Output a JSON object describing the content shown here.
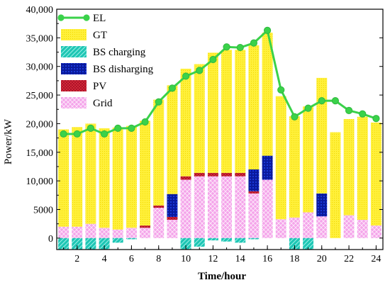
{
  "chart_data": {
    "type": "bar",
    "xlabel": "Time/hour",
    "ylabel": "Power/kW",
    "ylim": [
      -2000,
      40000
    ],
    "xlim": [
      0.5,
      24.5
    ],
    "x_ticks": [
      2,
      4,
      6,
      8,
      10,
      12,
      14,
      16,
      18,
      20,
      22,
      24
    ],
    "x_tick_labels": [
      "2",
      "4",
      "6",
      "8",
      "10",
      "12",
      "14",
      "16",
      "18",
      "20",
      "22",
      "24"
    ],
    "y_ticks": [
      0,
      5000,
      10000,
      15000,
      20000,
      25000,
      30000,
      35000,
      40000
    ],
    "y_tick_labels": [
      "0",
      "5000",
      "10,000",
      "15,000",
      "20,000",
      "25,000",
      "30,000",
      "35,000",
      "40,000"
    ],
    "hours": [
      1,
      2,
      3,
      4,
      5,
      6,
      7,
      8,
      9,
      10,
      11,
      12,
      13,
      14,
      15,
      16,
      17,
      18,
      19,
      20,
      21,
      22,
      23,
      24
    ],
    "legend": {
      "position": "top-left",
      "entries": [
        "EL",
        "GT",
        "BS charging",
        "BS disharging",
        "PV",
        "Grid"
      ]
    },
    "series": [
      {
        "name": "Grid",
        "kind": "stacked-bar",
        "color": "#f2a0e6",
        "values": [
          2000,
          2000,
          2500,
          1800,
          1500,
          1800,
          1800,
          5300,
          3200,
          10200,
          10800,
          10800,
          10800,
          10800,
          7800,
          10200,
          3300,
          3600,
          4500,
          3800,
          0,
          4000,
          3200,
          2200
        ]
      },
      {
        "name": "PV",
        "kind": "stacked-bar",
        "color": "#b0102a",
        "values": [
          0,
          0,
          0,
          0,
          0,
          0,
          400,
          400,
          500,
          600,
          600,
          600,
          600,
          600,
          400,
          0,
          0,
          0,
          0,
          0,
          0,
          0,
          0,
          0
        ]
      },
      {
        "name": "BS disharging",
        "kind": "stacked-bar",
        "color": "#0a1a9c",
        "values": [
          0,
          0,
          0,
          0,
          0,
          0,
          0,
          0,
          4000,
          0,
          0,
          0,
          0,
          0,
          3800,
          4200,
          0,
          0,
          0,
          4000,
          0,
          0,
          0,
          0
        ]
      },
      {
        "name": "GT",
        "kind": "stacked-bar",
        "color": "#fff03a",
        "values": [
          17000,
          17400,
          17500,
          17400,
          17800,
          17800,
          18300,
          18500,
          19000,
          18800,
          19000,
          21000,
          21500,
          21500,
          21700,
          21500,
          21500,
          17700,
          18500,
          20200,
          18500,
          16800,
          18000,
          18000
        ]
      },
      {
        "name": "BS charging",
        "kind": "negative-bar",
        "color": "#19c8b8",
        "values": [
          -2000,
          -2000,
          -2000,
          -2000,
          -800,
          -200,
          0,
          0,
          0,
          -2000,
          -1500,
          -400,
          -600,
          -800,
          -200,
          0,
          0,
          -2000,
          -2000,
          0,
          0,
          0,
          0,
          0
        ]
      },
      {
        "name": "EL",
        "kind": "line",
        "color": "#3ad24a",
        "values": [
          18200,
          18200,
          19200,
          18200,
          19200,
          19200,
          20300,
          23800,
          26200,
          28300,
          29300,
          31200,
          33400,
          33300,
          34100,
          36300,
          25900,
          21200,
          22700,
          24000,
          24000,
          22300,
          21700,
          20900
        ]
      }
    ]
  }
}
